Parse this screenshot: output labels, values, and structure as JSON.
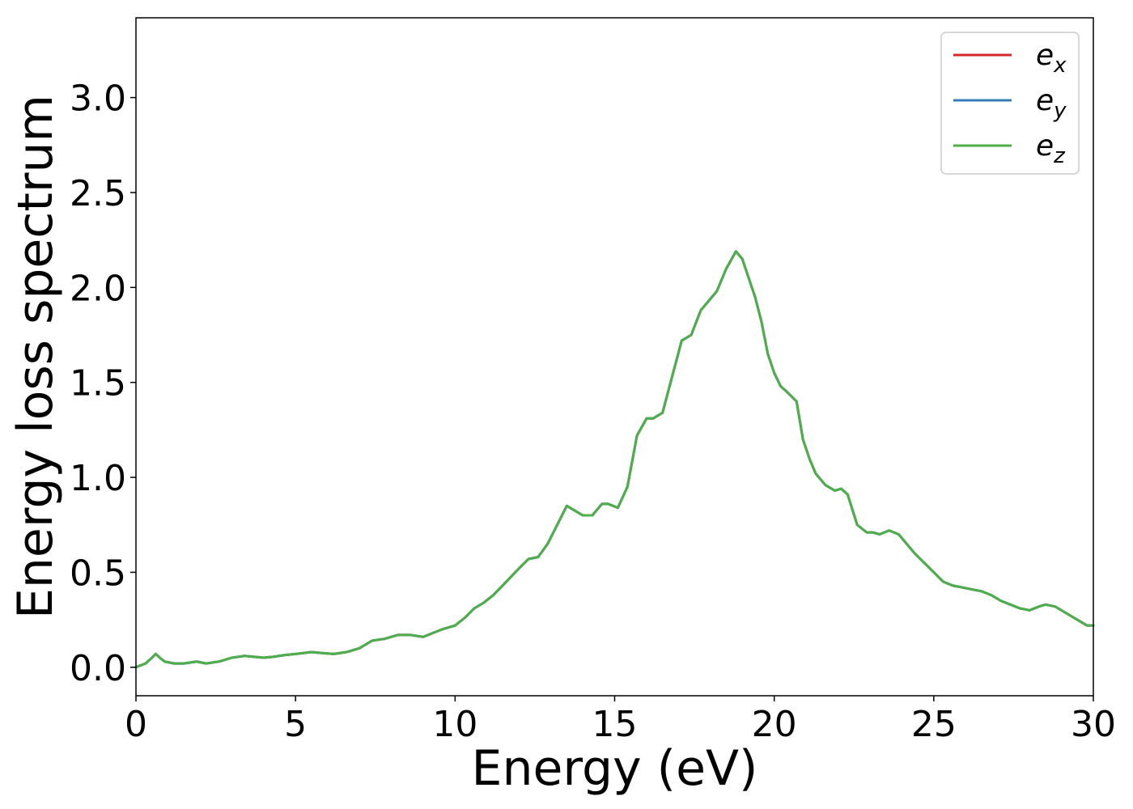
{
  "chart_data": {
    "type": "line",
    "xlabel": "Energy (eV)",
    "ylabel": "Energy loss spectrum",
    "xlim": [
      0,
      30
    ],
    "ylim": [
      -0.15,
      3.42
    ],
    "xticks": [
      0,
      5,
      10,
      15,
      20,
      25,
      30
    ],
    "yticks": [
      "0.0",
      "0.5",
      "1.0",
      "1.5",
      "2.0",
      "2.5",
      "3.0"
    ],
    "grid": false,
    "legend_position": "top-right",
    "x": [
      0,
      0.3,
      0.5,
      0.62,
      0.75,
      0.9,
      1.2,
      1.5,
      1.9,
      2.2,
      2.6,
      3.0,
      3.4,
      3.7,
      4.0,
      4.3,
      4.7,
      5.0,
      5.5,
      5.8,
      6.2,
      6.6,
      7.0,
      7.4,
      7.8,
      8.2,
      8.6,
      9.0,
      9.3,
      9.6,
      10.0,
      10.3,
      10.6,
      10.9,
      11.2,
      11.6,
      12.0,
      12.3,
      12.6,
      12.9,
      13.2,
      13.5,
      13.7,
      14.0,
      14.3,
      14.6,
      14.8,
      15.1,
      15.4,
      15.7,
      16.0,
      16.2,
      16.5,
      16.8,
      17.1,
      17.4,
      17.7,
      17.9,
      18.2,
      18.5,
      18.8,
      19.0,
      19.1,
      19.2,
      19.4,
      19.6,
      19.8,
      20.0,
      20.2,
      20.4,
      20.7,
      20.9,
      21.1,
      21.3,
      21.6,
      21.9,
      22.1,
      22.3,
      22.6,
      22.9,
      23.1,
      23.3,
      23.6,
      23.9,
      24.1,
      24.4,
      24.7,
      25.0,
      25.3,
      25.6,
      25.9,
      26.2,
      26.5,
      26.8,
      27.1,
      27.4,
      27.7,
      28.0,
      28.3,
      28.5,
      28.8,
      29.0,
      29.3,
      29.6,
      29.8,
      30.0
    ],
    "series": [
      {
        "name": "e_x",
        "label_base": "e",
        "label_sub": "x",
        "color": "#d62728",
        "values": [
          0.0,
          0.02,
          0.05,
          0.07,
          0.05,
          0.03,
          0.02,
          0.02,
          0.03,
          0.02,
          0.03,
          0.05,
          0.06,
          0.055,
          0.05,
          0.055,
          0.065,
          0.07,
          0.08,
          0.075,
          0.07,
          0.08,
          0.1,
          0.14,
          0.15,
          0.17,
          0.17,
          0.16,
          0.18,
          0.2,
          0.22,
          0.26,
          0.31,
          0.34,
          0.38,
          0.45,
          0.52,
          0.57,
          0.58,
          0.65,
          0.75,
          0.85,
          0.83,
          0.8,
          0.8,
          0.86,
          0.86,
          0.84,
          0.95,
          1.22,
          1.31,
          1.31,
          1.34,
          1.53,
          1.72,
          1.75,
          1.88,
          1.92,
          1.98,
          2.1,
          2.19,
          2.15,
          2.1,
          2.05,
          1.95,
          1.82,
          1.65,
          1.55,
          1.48,
          1.45,
          1.4,
          1.2,
          1.1,
          1.02,
          0.96,
          0.93,
          0.94,
          0.91,
          0.75,
          0.71,
          0.71,
          0.7,
          0.72,
          0.7,
          0.66,
          0.6,
          0.55,
          0.5,
          0.45,
          0.43,
          0.42,
          0.41,
          0.4,
          0.38,
          0.35,
          0.33,
          0.31,
          0.3,
          0.32,
          0.33,
          0.32,
          0.3,
          0.27,
          0.24,
          0.22,
          0.22
        ]
      },
      {
        "name": "e_y",
        "label_base": "e",
        "label_sub": "y",
        "color": "#377eb8",
        "values": [
          0.0,
          0.02,
          0.05,
          0.07,
          0.05,
          0.03,
          0.02,
          0.02,
          0.03,
          0.02,
          0.03,
          0.05,
          0.06,
          0.055,
          0.05,
          0.055,
          0.065,
          0.07,
          0.08,
          0.075,
          0.07,
          0.08,
          0.1,
          0.14,
          0.15,
          0.17,
          0.17,
          0.16,
          0.18,
          0.2,
          0.22,
          0.26,
          0.31,
          0.34,
          0.38,
          0.45,
          0.52,
          0.57,
          0.58,
          0.65,
          0.75,
          0.85,
          0.83,
          0.8,
          0.8,
          0.86,
          0.86,
          0.84,
          0.95,
          1.22,
          1.31,
          1.31,
          1.34,
          1.53,
          1.72,
          1.75,
          1.88,
          1.92,
          1.98,
          2.1,
          2.19,
          2.15,
          2.1,
          2.05,
          1.95,
          1.82,
          1.65,
          1.55,
          1.48,
          1.45,
          1.4,
          1.2,
          1.1,
          1.02,
          0.96,
          0.93,
          0.94,
          0.91,
          0.75,
          0.71,
          0.71,
          0.7,
          0.72,
          0.7,
          0.66,
          0.6,
          0.55,
          0.5,
          0.45,
          0.43,
          0.42,
          0.41,
          0.4,
          0.38,
          0.35,
          0.33,
          0.31,
          0.3,
          0.32,
          0.33,
          0.32,
          0.3,
          0.27,
          0.24,
          0.22,
          0.22
        ]
      },
      {
        "name": "e_z",
        "label_base": "e",
        "label_sub": "z",
        "color": "#4daf4a",
        "values": [
          0.0,
          0.02,
          0.05,
          0.07,
          0.05,
          0.03,
          0.02,
          0.02,
          0.03,
          0.02,
          0.03,
          0.05,
          0.06,
          0.055,
          0.05,
          0.055,
          0.065,
          0.07,
          0.08,
          0.075,
          0.07,
          0.08,
          0.1,
          0.14,
          0.15,
          0.17,
          0.17,
          0.16,
          0.18,
          0.2,
          0.22,
          0.26,
          0.31,
          0.34,
          0.38,
          0.45,
          0.52,
          0.57,
          0.58,
          0.65,
          0.75,
          0.85,
          0.83,
          0.8,
          0.8,
          0.86,
          0.86,
          0.84,
          0.95,
          1.22,
          1.31,
          1.31,
          1.34,
          1.53,
          1.72,
          1.75,
          1.88,
          1.92,
          1.98,
          2.1,
          2.19,
          2.15,
          2.1,
          2.05,
          1.95,
          1.82,
          1.65,
          1.55,
          1.48,
          1.45,
          1.4,
          1.2,
          1.1,
          1.02,
          0.96,
          0.93,
          0.94,
          0.91,
          0.75,
          0.71,
          0.71,
          0.7,
          0.72,
          0.7,
          0.66,
          0.6,
          0.55,
          0.5,
          0.45,
          0.43,
          0.42,
          0.41,
          0.4,
          0.38,
          0.35,
          0.33,
          0.31,
          0.3,
          0.32,
          0.33,
          0.32,
          0.3,
          0.27,
          0.24,
          0.22,
          0.22
        ]
      }
    ]
  }
}
